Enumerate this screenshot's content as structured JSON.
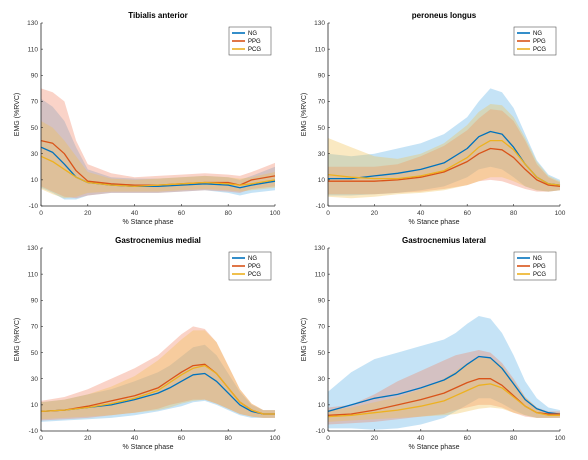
{
  "chart_data": [
    {
      "type": "line",
      "title": "Tibialis anterior",
      "xlabel": "% Stance phase",
      "ylabel": "EMG (%RVC)",
      "xlim": [
        0,
        100
      ],
      "ylim": [
        -10,
        130
      ],
      "xticks": [
        "0",
        "20",
        "40",
        "60",
        "80",
        "100"
      ],
      "yticks": [
        "-10",
        "10",
        "30",
        "50",
        "70",
        "90",
        "110",
        "130"
      ],
      "legend_position": "top-right",
      "series": [
        {
          "name": "NG",
          "x": [
            0,
            5,
            10,
            15,
            20,
            30,
            40,
            50,
            60,
            70,
            80,
            85,
            90,
            100
          ],
          "values": [
            35,
            31,
            22,
            12,
            8,
            6,
            5,
            5,
            6,
            7,
            6,
            4,
            6,
            9
          ],
          "upper": [
            72,
            66,
            55,
            35,
            18,
            12,
            11,
            11,
            12,
            13,
            12,
            10,
            13,
            20
          ],
          "lower": [
            4,
            0,
            -5,
            -5,
            -2,
            0,
            0,
            0,
            1,
            2,
            0,
            -2,
            0,
            2
          ]
        },
        {
          "name": "PPG",
          "x": [
            0,
            5,
            10,
            15,
            20,
            30,
            40,
            50,
            60,
            70,
            80,
            85,
            90,
            100
          ],
          "values": [
            40,
            38,
            30,
            17,
            9,
            7,
            6,
            6,
            7,
            8,
            8,
            6,
            10,
            13
          ],
          "upper": [
            80,
            77,
            70,
            40,
            22,
            15,
            12,
            13,
            14,
            15,
            14,
            13,
            16,
            23
          ],
          "lower": [
            5,
            1,
            -3,
            -4,
            -2,
            0,
            0,
            0,
            1,
            2,
            1,
            0,
            3,
            5
          ]
        },
        {
          "name": "PCG",
          "x": [
            0,
            5,
            10,
            15,
            20,
            30,
            40,
            50,
            60,
            70,
            80,
            85,
            90,
            100
          ],
          "values": [
            28,
            24,
            18,
            12,
            8,
            6,
            5,
            6,
            7,
            8,
            7,
            6,
            7,
            10
          ],
          "upper": [
            55,
            50,
            40,
            28,
            16,
            11,
            10,
            11,
            12,
            13,
            12,
            11,
            12,
            16
          ],
          "lower": [
            3,
            -1,
            -4,
            -3,
            0,
            1,
            1,
            1,
            2,
            3,
            2,
            1,
            2,
            4
          ]
        }
      ]
    },
    {
      "type": "line",
      "title": "peroneus longus",
      "xlabel": "% Stance phase",
      "ylabel": "EMG (%RVC)",
      "xlim": [
        0,
        100
      ],
      "ylim": [
        -10,
        130
      ],
      "xticks": [
        "0",
        "20",
        "40",
        "60",
        "80",
        "100"
      ],
      "yticks": [
        "-10",
        "10",
        "30",
        "50",
        "70",
        "90",
        "110",
        "130"
      ],
      "legend_position": "top-right",
      "series": [
        {
          "name": "NG",
          "x": [
            0,
            10,
            20,
            30,
            40,
            50,
            60,
            65,
            70,
            75,
            80,
            85,
            90,
            95,
            100
          ],
          "values": [
            11,
            11,
            13,
            15,
            18,
            23,
            34,
            43,
            47,
            45,
            35,
            22,
            12,
            7,
            6
          ],
          "upper": [
            30,
            28,
            30,
            34,
            38,
            45,
            58,
            70,
            80,
            77,
            65,
            45,
            25,
            14,
            10
          ],
          "lower": [
            -2,
            -2,
            -1,
            0,
            2,
            5,
            12,
            18,
            20,
            18,
            12,
            5,
            2,
            1,
            2
          ]
        },
        {
          "name": "PPG",
          "x": [
            0,
            10,
            20,
            30,
            40,
            50,
            60,
            65,
            70,
            75,
            80,
            85,
            90,
            95,
            100
          ],
          "values": [
            9,
            9,
            9,
            10,
            12,
            16,
            24,
            30,
            34,
            33,
            27,
            18,
            10,
            6,
            5
          ],
          "upper": [
            20,
            20,
            20,
            22,
            28,
            36,
            48,
            57,
            64,
            63,
            55,
            40,
            22,
            12,
            8
          ],
          "lower": [
            -1,
            -1,
            -1,
            0,
            1,
            3,
            6,
            9,
            10,
            9,
            6,
            3,
            1,
            1,
            2
          ]
        },
        {
          "name": "PCG",
          "x": [
            0,
            10,
            20,
            30,
            40,
            50,
            60,
            65,
            70,
            75,
            80,
            85,
            90,
            95,
            100
          ],
          "values": [
            14,
            12,
            11,
            11,
            13,
            17,
            27,
            35,
            40,
            40,
            33,
            22,
            12,
            7,
            6
          ],
          "upper": [
            42,
            35,
            28,
            26,
            30,
            38,
            52,
            62,
            68,
            67,
            58,
            42,
            24,
            13,
            9
          ],
          "lower": [
            -3,
            -4,
            -3,
            -1,
            0,
            2,
            6,
            9,
            12,
            12,
            9,
            5,
            2,
            1,
            2
          ]
        }
      ]
    },
    {
      "type": "line",
      "title": "Gastrocnemius medial",
      "xlabel": "% Stance phase",
      "ylabel": "EMG (%RVC)",
      "xlim": [
        0,
        100
      ],
      "ylim": [
        -10,
        130
      ],
      "xticks": [
        "0",
        "20",
        "40",
        "60",
        "80",
        "100"
      ],
      "yticks": [
        "-10",
        "10",
        "30",
        "50",
        "70",
        "90",
        "110",
        "130"
      ],
      "legend_position": "top-right",
      "series": [
        {
          "name": "NG",
          "x": [
            0,
            10,
            20,
            30,
            40,
            50,
            55,
            60,
            65,
            70,
            75,
            80,
            85,
            90,
            95,
            100
          ],
          "values": [
            5,
            6,
            8,
            10,
            14,
            19,
            23,
            28,
            33,
            34,
            28,
            19,
            10,
            5,
            3,
            3
          ],
          "upper": [
            12,
            14,
            18,
            22,
            28,
            35,
            40,
            47,
            54,
            56,
            48,
            34,
            20,
            10,
            6,
            6
          ],
          "lower": [
            -3,
            -2,
            -1,
            0,
            2,
            5,
            7,
            9,
            12,
            13,
            10,
            6,
            2,
            0,
            0,
            0
          ]
        },
        {
          "name": "PPG",
          "x": [
            0,
            10,
            20,
            30,
            40,
            50,
            55,
            60,
            65,
            70,
            75,
            80,
            85,
            90,
            95,
            100
          ],
          "values": [
            5,
            6,
            9,
            13,
            17,
            23,
            29,
            35,
            40,
            41,
            34,
            23,
            12,
            6,
            3,
            3
          ],
          "upper": [
            13,
            16,
            22,
            30,
            38,
            48,
            56,
            64,
            70,
            68,
            58,
            40,
            22,
            11,
            6,
            6
          ],
          "lower": [
            -2,
            -1,
            0,
            2,
            4,
            7,
            10,
            12,
            14,
            14,
            11,
            7,
            3,
            1,
            0,
            0
          ]
        },
        {
          "name": "PCG",
          "x": [
            0,
            10,
            20,
            30,
            40,
            50,
            55,
            60,
            65,
            70,
            75,
            80,
            85,
            90,
            95,
            100
          ],
          "values": [
            5,
            6,
            8,
            11,
            15,
            21,
            27,
            33,
            38,
            40,
            34,
            23,
            12,
            6,
            3,
            3
          ],
          "upper": [
            12,
            14,
            18,
            24,
            32,
            44,
            52,
            60,
            67,
            67,
            58,
            40,
            22,
            11,
            6,
            6
          ],
          "lower": [
            -1,
            0,
            1,
            2,
            4,
            6,
            8,
            11,
            13,
            14,
            11,
            7,
            3,
            1,
            0,
            0
          ]
        }
      ]
    },
    {
      "type": "line",
      "title": "Gastrocnemius lateral",
      "xlabel": "% Stance phase",
      "ylabel": "EMG (%RVC)",
      "xlim": [
        0,
        100
      ],
      "ylim": [
        -10,
        130
      ],
      "xticks": [
        "0",
        "20",
        "40",
        "60",
        "80",
        "100"
      ],
      "yticks": [
        "-10",
        "10",
        "30",
        "50",
        "70",
        "90",
        "110",
        "130"
      ],
      "legend_position": "top-right",
      "series": [
        {
          "name": "NG",
          "x": [
            0,
            10,
            20,
            30,
            40,
            50,
            55,
            60,
            65,
            70,
            75,
            80,
            85,
            90,
            95,
            100
          ],
          "values": [
            5,
            10,
            15,
            18,
            23,
            29,
            34,
            41,
            47,
            46,
            38,
            26,
            14,
            7,
            4,
            3
          ],
          "upper": [
            20,
            35,
            45,
            50,
            55,
            60,
            65,
            72,
            78,
            76,
            65,
            48,
            28,
            15,
            8,
            6
          ],
          "lower": [
            -8,
            -8,
            -9,
            -8,
            -5,
            0,
            5,
            10,
            15,
            15,
            11,
            6,
            2,
            0,
            0,
            0
          ]
        },
        {
          "name": "PPG",
          "x": [
            0,
            10,
            20,
            30,
            40,
            50,
            55,
            60,
            65,
            70,
            75,
            80,
            85,
            90,
            95,
            100
          ],
          "values": [
            2,
            3,
            6,
            10,
            14,
            19,
            23,
            27,
            30,
            30,
            25,
            17,
            9,
            4,
            3,
            3
          ],
          "upper": [
            8,
            10,
            18,
            28,
            36,
            44,
            48,
            50,
            52,
            50,
            42,
            30,
            16,
            8,
            5,
            5
          ],
          "lower": [
            -5,
            -4,
            -3,
            -1,
            1,
            3,
            6,
            8,
            10,
            10,
            8,
            4,
            1,
            0,
            0,
            0
          ]
        },
        {
          "name": "PCG",
          "x": [
            0,
            10,
            20,
            30,
            40,
            50,
            55,
            60,
            65,
            70,
            75,
            80,
            85,
            90,
            95,
            100
          ],
          "values": [
            1,
            2,
            4,
            6,
            9,
            13,
            17,
            21,
            25,
            26,
            23,
            16,
            9,
            4,
            2,
            2
          ],
          "upper": [
            6,
            8,
            12,
            16,
            22,
            30,
            36,
            42,
            46,
            46,
            40,
            28,
            16,
            8,
            4,
            4
          ],
          "lower": [
            -3,
            -2,
            -1,
            0,
            1,
            2,
            3,
            5,
            7,
            8,
            7,
            4,
            2,
            0,
            0,
            0
          ]
        }
      ]
    }
  ],
  "colors": {
    "NG": "#0072BD",
    "PPG": "#D95319",
    "PCG": "#EDB120",
    "band_NG": "#5AB0E6",
    "band_PPG": "#F08060",
    "band_PCG": "#F0C050",
    "axis": "#262626"
  }
}
